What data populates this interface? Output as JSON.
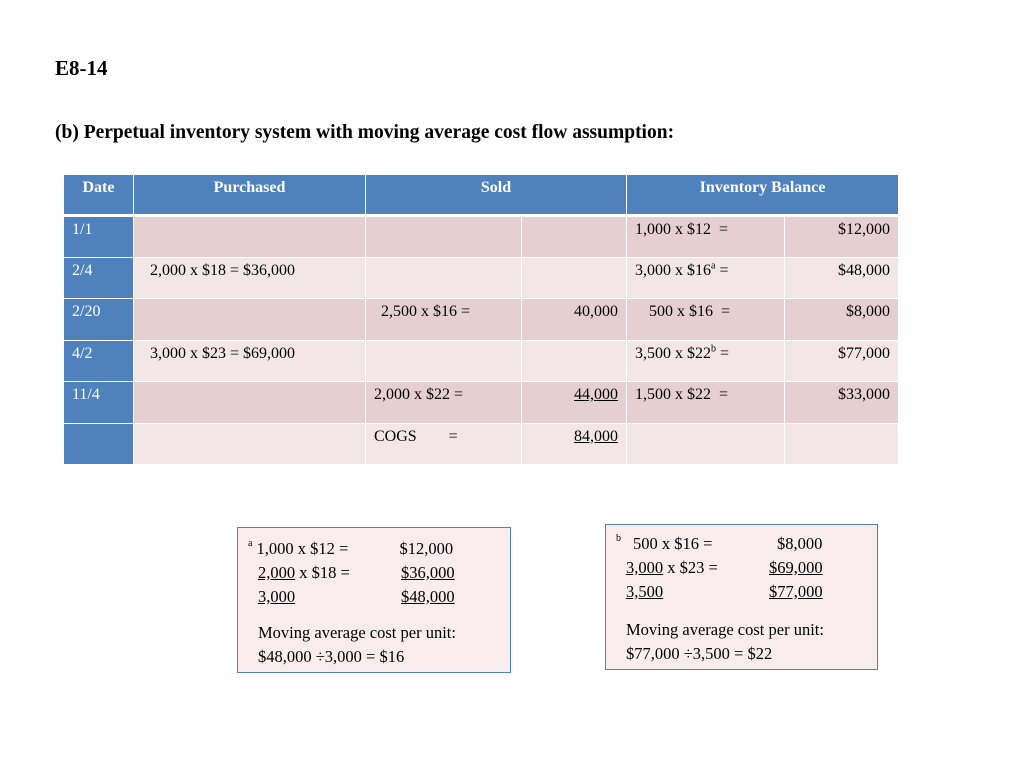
{
  "slide": {
    "code": "E8-14",
    "subtitle": "(b)  Perpetual inventory system with moving average cost flow assumption:"
  },
  "table": {
    "headers": {
      "date": "Date",
      "purchased": "Purchased",
      "sold": "Sold",
      "inventory_balance": "Inventory Balance"
    },
    "rows": [
      {
        "date": "1/1",
        "purchased": "",
        "sold_calc": "",
        "sold_amount": "",
        "balance_calc": "1,000 x $12  =",
        "balance_amount": "$12,000"
      },
      {
        "date": "2/4",
        "purchased": "2,000 x $18 = $36,000",
        "sold_calc": "",
        "sold_amount": "",
        "balance_calc": "3,000 x $16",
        "balance_mark": "a",
        "balance_eq": " =",
        "balance_amount": "$48,000"
      },
      {
        "date": "2/20",
        "purchased": "",
        "sold_calc": "2,500 x $16 =",
        "sold_amount": "40,000",
        "balance_calc": "500 x $16  =",
        "balance_amount": "$8,000"
      },
      {
        "date": "4/2",
        "purchased": "3,000 x $23 = $69,000",
        "sold_calc": "",
        "sold_amount": "",
        "balance_calc": "3,500 x $22",
        "balance_mark": "b",
        "balance_eq": " =",
        "balance_amount": "$77,000"
      },
      {
        "date": "11/4",
        "purchased": "",
        "sold_calc": "2,000 x $22 =",
        "sold_amount": "44,000",
        "balance_calc": "1,500 x $22  =",
        "balance_amount": "$33,000"
      },
      {
        "date": "",
        "purchased": "",
        "sold_calc": "COGS        =",
        "sold_amount": "84,000",
        "balance_calc": "",
        "balance_amount": ""
      }
    ]
  },
  "footnote_a": {
    "marker": "a",
    "lines": [
      {
        "calc": "1,000 x $12 =",
        "amount": "$12,000"
      },
      {
        "qty": "2,000",
        "rest": " x $18 =",
        "amount": "$36,000"
      },
      {
        "qty": "3,000",
        "amount": "$48,000"
      }
    ],
    "avg_label": "Moving average cost per unit:",
    "avg_calc": "$48,000 ÷3,000 = $16"
  },
  "footnote_b": {
    "marker": "b",
    "lines": [
      {
        "calc": "500 x $16 =",
        "amount": "$8,000"
      },
      {
        "qty": "3,000",
        "rest": " x $23 =",
        "amount": "$69,000"
      },
      {
        "qty": "3,500",
        "amount": "$77,000"
      }
    ],
    "avg_label": "Moving average cost per unit:",
    "avg_calc": "$77,000 ÷3,500 = $22"
  }
}
